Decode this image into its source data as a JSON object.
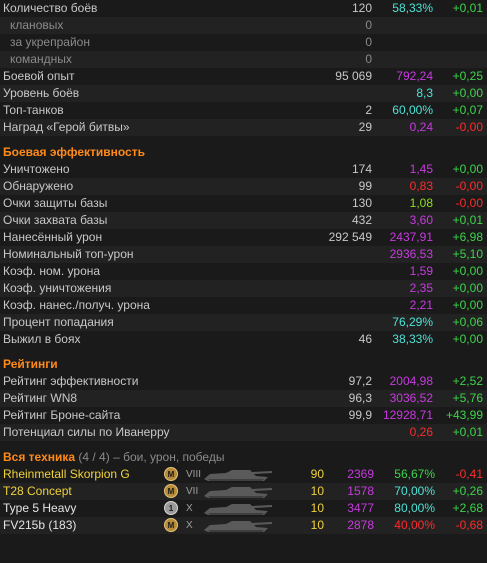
{
  "general": [
    {
      "label": "Количество боёв",
      "v1": "120",
      "v2": "58,33%",
      "v3": "+0,01",
      "c2": "cyan",
      "c3": "green"
    },
    {
      "label": "клановых",
      "v1": "0",
      "sub": true
    },
    {
      "label": "за укрепрайон",
      "v1": "0",
      "sub": true
    },
    {
      "label": "командных",
      "v1": "0",
      "sub": true
    },
    {
      "label": "Боевой опыт",
      "v1": "95 069",
      "v2": "792,24",
      "v3": "+0,25",
      "c2": "purple",
      "c3": "green"
    },
    {
      "label": "Уровень боёв",
      "v1": "",
      "v2": "8,3",
      "v3": "+0,00",
      "c2": "cyan",
      "c3": "green"
    },
    {
      "label": "Топ-танков",
      "v1": "2",
      "v2": "60,00%",
      "v3": "+0,07",
      "c2": "cyan",
      "c3": "green"
    },
    {
      "label": "Наград «Герой битвы»",
      "v1": "29",
      "v2": "0,24",
      "v3": "-0,00",
      "c2": "purple",
      "c3": "red"
    }
  ],
  "efficiency_title": "Боевая эффективность",
  "efficiency": [
    {
      "label": "Уничтожено",
      "v1": "174",
      "v2": "1,45",
      "v3": "+0,00",
      "c2": "purple",
      "c3": "green"
    },
    {
      "label": "Обнаружено",
      "v1": "99",
      "v2": "0,83",
      "v3": "-0,00",
      "c2": "red",
      "c3": "red"
    },
    {
      "label": "Очки защиты базы",
      "v1": "130",
      "v2": "1,08",
      "v3": "-0,00",
      "c2": "lime",
      "c3": "red"
    },
    {
      "label": "Очки захвата базы",
      "v1": "432",
      "v2": "3,60",
      "v3": "+0,01",
      "c2": "purple",
      "c3": "green"
    },
    {
      "label": "Нанесённый урон",
      "v1": "292 549",
      "v2": "2437,91",
      "v3": "+6,98",
      "c2": "purple",
      "c3": "green"
    },
    {
      "label": "Номинальный топ-урон",
      "v1": "",
      "v2": "2936,53",
      "v3": "+5,10",
      "c2": "purple",
      "c3": "green"
    },
    {
      "label": "Коэф. ном. урона",
      "v1": "",
      "v2": "1,59",
      "v3": "+0,00",
      "c2": "purple",
      "c3": "green"
    },
    {
      "label": "Коэф. уничтожения",
      "v1": "",
      "v2": "2,35",
      "v3": "+0,00",
      "c2": "purple",
      "c3": "green"
    },
    {
      "label": "Коэф. нанес./получ. урона",
      "v1": "",
      "v2": "2,21",
      "v3": "+0,00",
      "c2": "purple",
      "c3": "green"
    },
    {
      "label": "Процент попадания",
      "v1": "",
      "v2": "76,29%",
      "v3": "+0,06",
      "c2": "cyan",
      "c3": "green"
    },
    {
      "label": "Выжил в боях",
      "v1": "46",
      "v2": "38,33%",
      "v3": "+0,00",
      "c2": "cyan",
      "c3": "green"
    }
  ],
  "ratings_title": "Рейтинги",
  "ratings": [
    {
      "label": "Рейтинг эффективности",
      "v1": "97,2",
      "v2": "2004,98",
      "v3": "+2,52",
      "c2": "purple",
      "c3": "green"
    },
    {
      "label": "Рейтинг WN8",
      "v1": "96,3",
      "v2": "3036,52",
      "v3": "+5,76",
      "c2": "purple",
      "c3": "green"
    },
    {
      "label": "Рейтинг Броне-сайта",
      "v1": "99,9",
      "v2": "12928,71",
      "v3": "+43,99",
      "c2": "purple",
      "c3": "green"
    },
    {
      "label": "Потенциал силы по Иванерру",
      "v1": "",
      "v2": "0,26",
      "v3": "+0,01",
      "c2": "red",
      "c3": "green"
    }
  ],
  "vehicles_title": "Вся техника",
  "vehicles_count": " (4 / 4)",
  "vehicles_desc": " – бои, урон, победы",
  "vehicles": [
    {
      "name": "Rheinmetall Skorpion G",
      "badge": "M",
      "tier": "VIII",
      "battles": "90",
      "damage": "2369",
      "winrate": "56,67%",
      "delta": "-0,41",
      "name_color": "yellow",
      "badge_color": "gold",
      "wr_color": "green",
      "delta_color": "red"
    },
    {
      "name": "T28 Concept",
      "badge": "M",
      "tier": "VII",
      "battles": "10",
      "damage": "1578",
      "winrate": "70,00%",
      "delta": "+0,26",
      "name_color": "yellow",
      "badge_color": "gold",
      "wr_color": "cyan",
      "delta_color": "green"
    },
    {
      "name": "Type 5 Heavy",
      "badge": "1",
      "tier": "X",
      "battles": "10",
      "damage": "3477",
      "winrate": "80,00%",
      "delta": "+2,68",
      "name_color": "white",
      "badge_color": "silver",
      "wr_color": "cyan",
      "delta_color": "green"
    },
    {
      "name": "FV215b (183)",
      "badge": "M",
      "tier": "X",
      "battles": "10",
      "damage": "2878",
      "winrate": "40,00%",
      "delta": "-0,68",
      "name_color": "white",
      "badge_color": "gold",
      "wr_color": "red",
      "delta_color": "red"
    }
  ]
}
